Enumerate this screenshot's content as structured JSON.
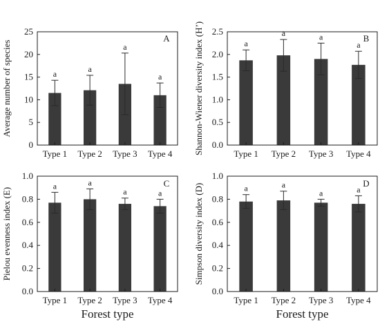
{
  "chart_data": [
    {
      "type": "bar",
      "panel": "A",
      "categories": [
        "Type 1",
        "Type 2",
        "Type 3",
        "Type 4"
      ],
      "values": [
        11.5,
        12.1,
        13.5,
        11.0
      ],
      "errors": [
        2.8,
        3.3,
        6.8,
        2.7
      ],
      "significance": [
        "a",
        "a",
        "a",
        "a"
      ],
      "ylabel": "Average number of species",
      "xlabel": "",
      "ylim": [
        0,
        25
      ],
      "yticks": [
        0,
        5,
        10,
        15,
        20,
        25
      ],
      "bar_color": "#3a3a3a"
    },
    {
      "type": "bar",
      "panel": "B",
      "categories": [
        "Type 1",
        "Type 2",
        "Type 3",
        "Type 4"
      ],
      "values": [
        1.87,
        1.98,
        1.9,
        1.77
      ],
      "errors": [
        0.23,
        0.35,
        0.35,
        0.3
      ],
      "significance": [
        "a",
        "a",
        "a",
        "a"
      ],
      "ylabel": "Shannon-Wiener diversity  index (H’)",
      "xlabel": "",
      "ylim": [
        0,
        2.5
      ],
      "yticks": [
        "0.0",
        "0.5",
        "1.0",
        "1.5",
        "2.0",
        "2.5"
      ],
      "bar_color": "#3a3a3a"
    },
    {
      "type": "bar",
      "panel": "C",
      "categories": [
        "Type 1",
        "Type 2",
        "Type 3",
        "Type 4"
      ],
      "values": [
        0.77,
        0.8,
        0.76,
        0.74
      ],
      "errors": [
        0.09,
        0.09,
        0.05,
        0.06
      ],
      "significance": [
        "a",
        "a",
        "a",
        "a"
      ],
      "ylabel": "Pielou  evenness  index (E)",
      "xlabel": "Forest type",
      "ylim": [
        0,
        1.0
      ],
      "yticks": [
        "0.0",
        "0.2",
        "0.4",
        "0.6",
        "0.8",
        "1.0"
      ],
      "bar_color": "#3a3a3a"
    },
    {
      "type": "bar",
      "panel": "D",
      "categories": [
        "Type 1",
        "Type 2",
        "Type 3",
        "Type 4"
      ],
      "values": [
        0.78,
        0.79,
        0.77,
        0.76
      ],
      "errors": [
        0.06,
        0.08,
        0.03,
        0.07
      ],
      "significance": [
        "a",
        "a",
        "a",
        "a"
      ],
      "ylabel": "Simpson diversity  index (D)",
      "xlabel": "Forest type",
      "ylim": [
        0,
        1.0
      ],
      "yticks": [
        "0.0",
        "0.2",
        "0.4",
        "0.6",
        "0.8",
        "1.0"
      ],
      "bar_color": "#3a3a3a"
    }
  ]
}
